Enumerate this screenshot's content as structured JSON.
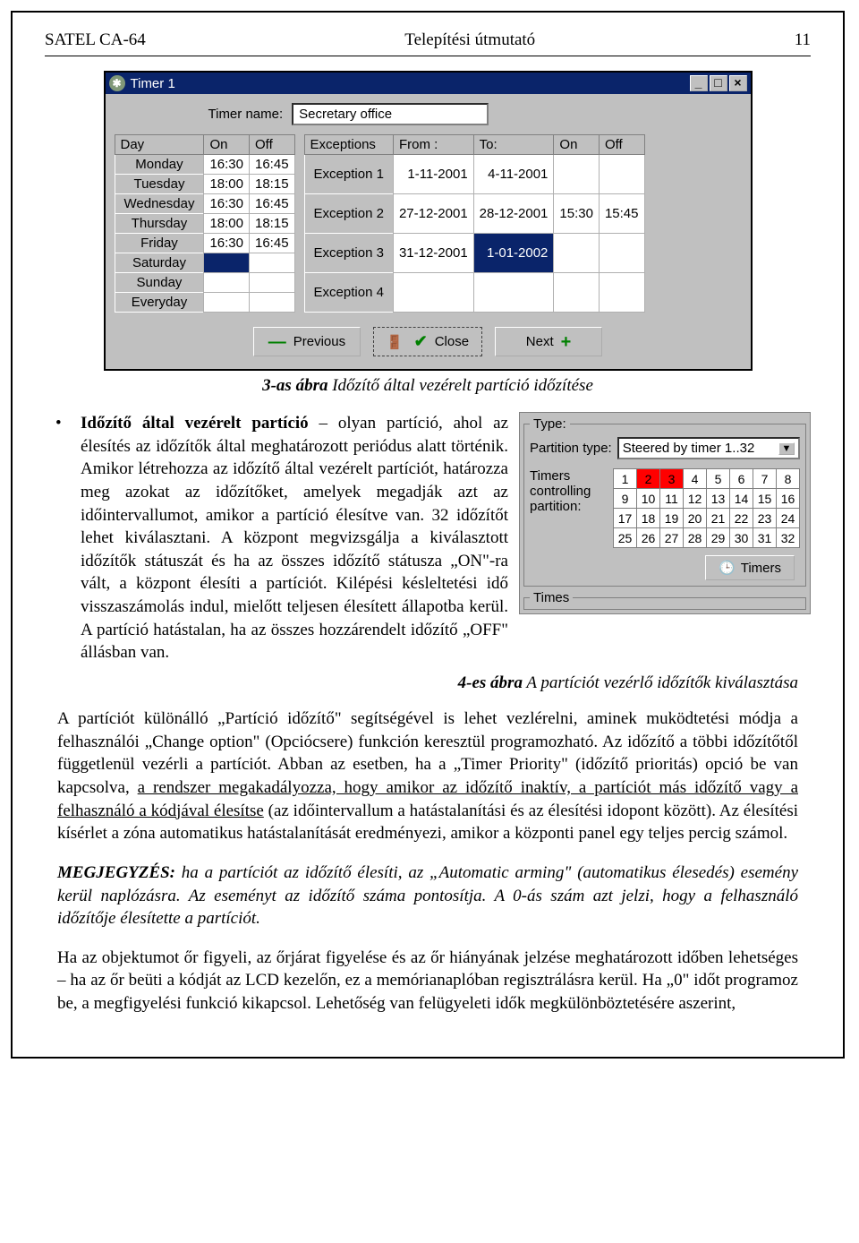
{
  "header": {
    "left": "SATEL CA-64",
    "center": "Telepítési útmutató",
    "page_number": "11"
  },
  "timer_window": {
    "title": "Timer 1",
    "name_label": "Timer name:",
    "name_value": "Secretary office",
    "day_table": {
      "headers": [
        "Day",
        "On",
        "Off"
      ],
      "rows": [
        {
          "day": "Monday",
          "on": "16:30",
          "off": "16:45"
        },
        {
          "day": "Tuesday",
          "on": "18:00",
          "off": "18:15"
        },
        {
          "day": "Wednesday",
          "on": "16:30",
          "off": "16:45"
        },
        {
          "day": "Thursday",
          "on": "18:00",
          "off": "18:15"
        },
        {
          "day": "Friday",
          "on": "16:30",
          "off": "16:45"
        },
        {
          "day": "Saturday",
          "on": "",
          "off": ""
        },
        {
          "day": "Sunday",
          "on": "",
          "off": ""
        },
        {
          "day": "Everyday",
          "on": "",
          "off": ""
        }
      ]
    },
    "exc_table": {
      "headers": [
        "Exceptions",
        "From :",
        "To:",
        "On",
        "Off"
      ],
      "rows": [
        {
          "label": "Exception 1",
          "from": "1-11-2001",
          "to": "4-11-2001",
          "on": "",
          "off": ""
        },
        {
          "label": "Exception 2",
          "from": "27-12-2001",
          "to": "28-12-2001",
          "on": "15:30",
          "off": "15:45"
        },
        {
          "label": "Exception 3",
          "from": "31-12-2001",
          "to": "1-01-2002",
          "on": "",
          "off": "",
          "to_selected": true
        },
        {
          "label": "Exception 4",
          "from": "",
          "to": "",
          "on": "",
          "off": ""
        }
      ]
    },
    "buttons": {
      "prev": "Previous",
      "close": "Close",
      "next": "Next"
    }
  },
  "caption3": "3-as ábra Időzítő által vezérelt partíció időzítése",
  "bullet": {
    "title": "Időzítő által vezérelt partíció",
    "text": " – olyan partíció, ahol az élesítés az időzítők által meghatározott periódus alatt történik. Amikor létrehozza az időzítő által vezérelt partíciót, határozza meg azokat az időzítőket, amelyek megadják azt az időintervallumot, amikor a partíció élesítve van. 32 időzítőt lehet kiválasztani. A központ megvizsgálja a kiválasztott időzítők státuszát és ha az összes időzítő státusza „ON\"-ra vált, a központ élesíti a partíciót. Kilépési késleltetési idő visszaszámolás indul, mielőtt teljesen élesített állapotba kerül. A partíció hatástalan, ha az összes hozzárendelt időzítő „OFF\" állásban van."
  },
  "type_panel": {
    "group_type_label": "Type:",
    "partition_type_label": "Partition type:",
    "partition_type_value": "Steered by timer 1..32",
    "timers_label1": "Timers",
    "timers_label2": "controlling",
    "timers_label3": "partition:",
    "numbers": [
      [
        "1",
        "2",
        "3",
        "4",
        "5",
        "6",
        "7",
        "8"
      ],
      [
        "9",
        "10",
        "11",
        "12",
        "13",
        "14",
        "15",
        "16"
      ],
      [
        "17",
        "18",
        "19",
        "20",
        "21",
        "22",
        "23",
        "24"
      ],
      [
        "25",
        "26",
        "27",
        "28",
        "29",
        "30",
        "31",
        "32"
      ]
    ],
    "on_cells": [
      [
        0,
        1
      ],
      [
        0,
        2
      ]
    ],
    "timers_button": "Timers",
    "group_times_label": "Times"
  },
  "caption4": "4-es ábra A partíciót vezérlő időzítők kiválasztása",
  "para1_a": "A partíciót különálló „Partíció időzítő\" segítségével is lehet vezlérelni, aminek muködtetési módja a felhasználói „Change option\" (Opciócsere) funkción keresztül programozható. Az időzítő a többi időzítőtől függetlenül vezérli a partíciót. Abban az esetben, ha a „Timer Priority\" (időzítő prioritás) opció be van kapcsolva, ",
  "para1_u": "a rendszer megakadályozza, hogy amikor az időzítő inaktív, a partíciót más időzítő vagy a felhasználó a kódjával élesítse",
  "para1_b": " (az időintervallum a hatástalanítási és az élesítési idopont között). Az élesítési kísérlet a zóna automatikus hatástalanítását eredményezi, amikor a központi panel egy teljes percig számol.",
  "note": {
    "label": "MEGJEGYZÉS:",
    "text": " ha a partíciót az időzítő élesíti, az „Automatic arming\" (automatikus élesedés) esemény kerül naplózásra. Az eseményt az időzítő száma pontosítja. A 0-ás szám azt jelzi, hogy a felhasználó időzítője élesítette a partíciót."
  },
  "para2": "Ha az objektumot őr figyeli, az őrjárat figyelése és az őr hiányának jelzése meghatározott időben lehetséges – ha az őr beüti a kódját az LCD kezelőn, ez a memórianaplóban regisztrálásra kerül. Ha „0\" időt programoz be, a megfigyelési funkció kikapcsol. Lehetőség van felügyeleti idők megkülönböztetésére aszerint,"
}
